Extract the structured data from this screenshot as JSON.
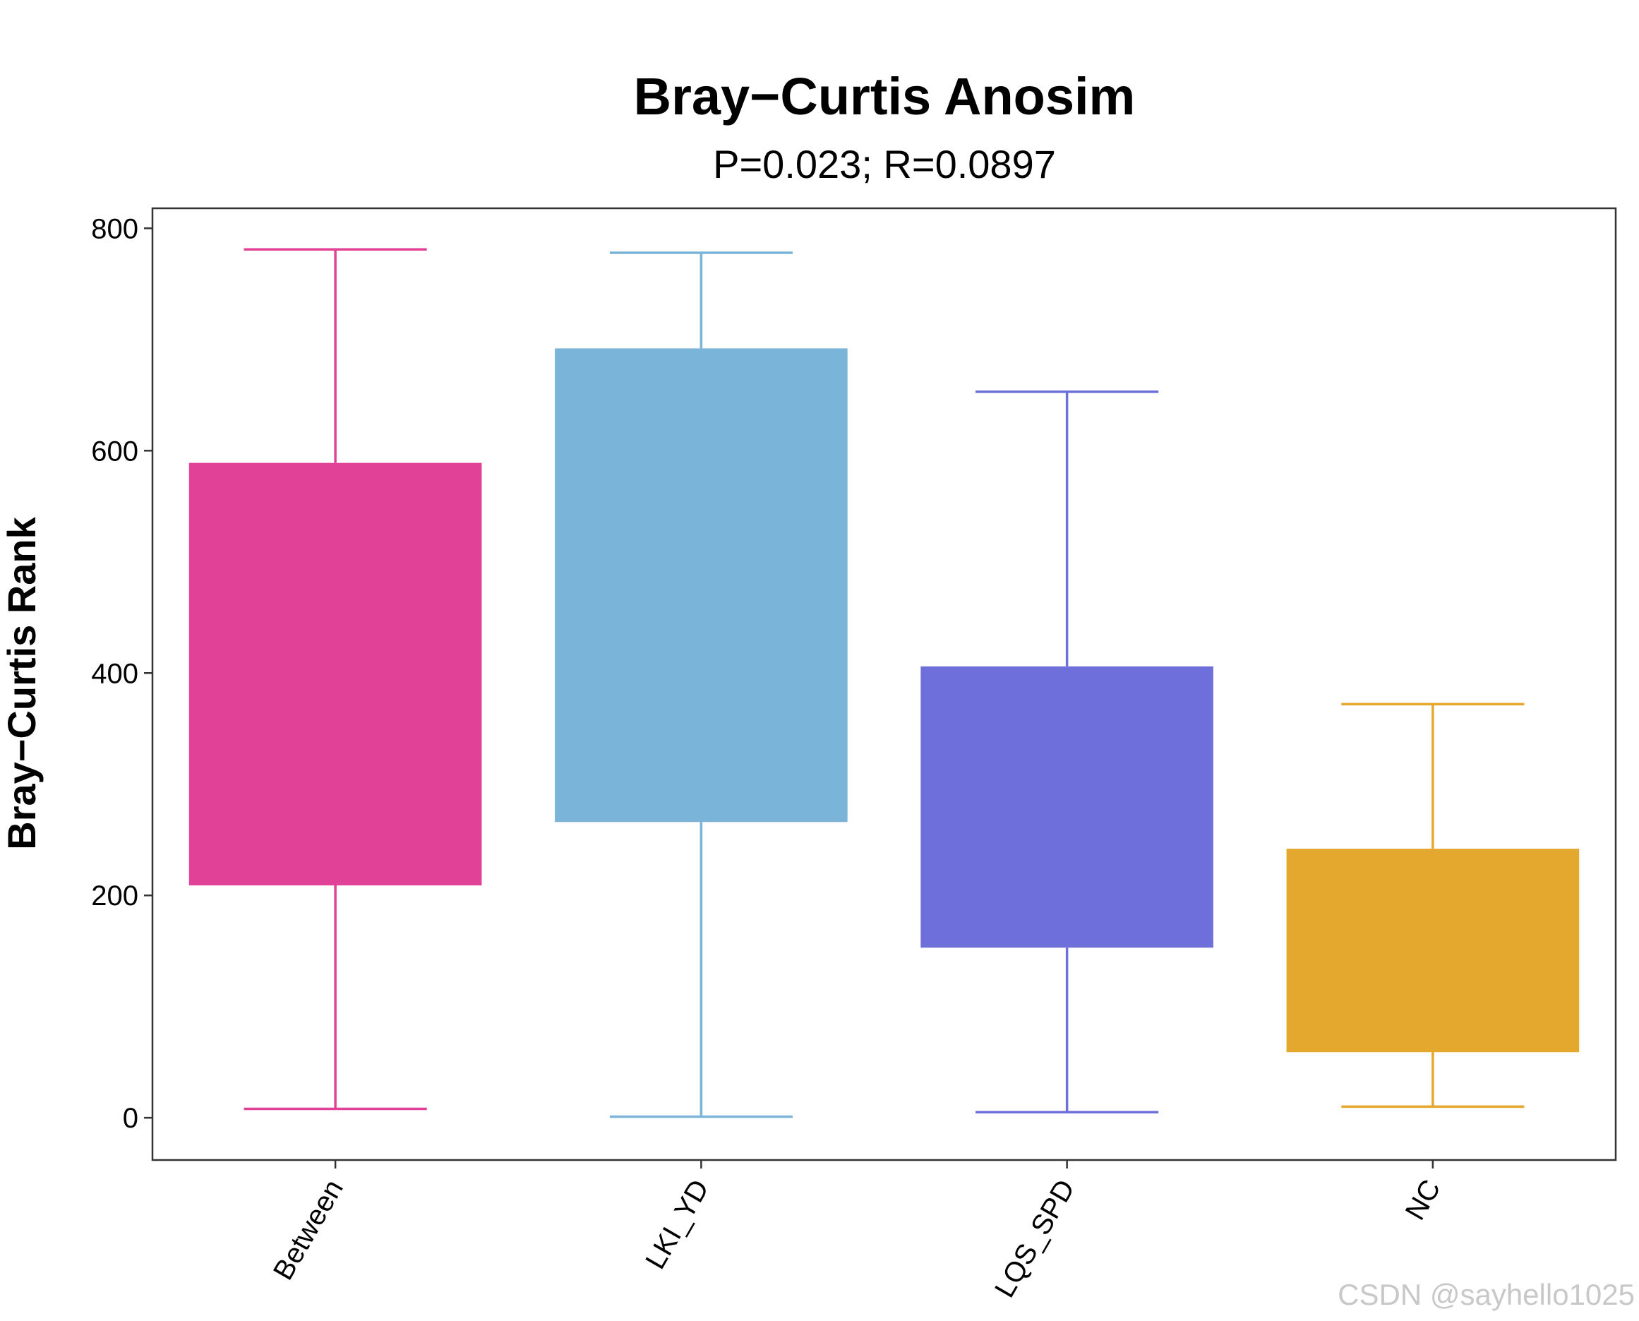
{
  "chart_data": {
    "type": "box",
    "title": "Bray−Curtis Anosim",
    "subtitle": "P=0.023; R=0.0897",
    "ylabel": "Bray−Curtis Rank",
    "xlabel": "",
    "ylim": [
      -38,
      818
    ],
    "yticks": [
      0,
      200,
      400,
      600,
      800
    ],
    "grid": false,
    "legend": "none",
    "categories": [
      "Between",
      "LKI_YD",
      "LQS_SPD",
      "NC"
    ],
    "boxes": [
      {
        "category": "Between",
        "whisker_low": 8,
        "q1": 209,
        "q3": 589,
        "whisker_high": 781,
        "color": "#E14297"
      },
      {
        "category": "LKI_YD",
        "whisker_low": 1,
        "q1": 266,
        "q3": 692,
        "whisker_high": 778,
        "color": "#7BB4D9"
      },
      {
        "category": "LQS_SPD",
        "whisker_low": 5,
        "q1": 153,
        "q3": 406,
        "whisker_high": 653,
        "color": "#6F6FDC"
      },
      {
        "category": "NC",
        "whisker_low": 10,
        "q1": 59,
        "q3": 242,
        "whisker_high": 372,
        "color": "#E5A82E"
      }
    ]
  },
  "watermark": "CSDN @sayhello1025"
}
